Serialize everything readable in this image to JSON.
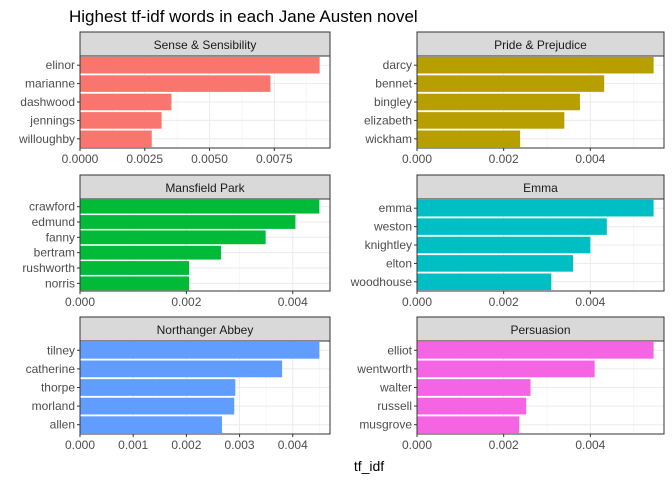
{
  "title": "Highest tf-idf words in each Jane Austen novel",
  "xlabel": "tf_idf",
  "chart_data": [
    {
      "type": "bar",
      "facet": "Sense & Sensibility",
      "color": "#F8766D",
      "categories": [
        "elinor",
        "marianne",
        "dashwood",
        "jennings",
        "willoughby"
      ],
      "values": [
        0.00925,
        0.00735,
        0.00353,
        0.00315,
        0.00277
      ],
      "xlim": [
        0,
        0.00965
      ],
      "ticks": [
        0,
        0.0025,
        0.005,
        0.0075
      ],
      "tick_labels": [
        "0.0000",
        "0.0025",
        "0.0050",
        "0.0075"
      ]
    },
    {
      "type": "bar",
      "facet": "Pride & Prejudice",
      "color": "#B79F00",
      "categories": [
        "darcy",
        "bennet",
        "bingley",
        "elizabeth",
        "wickham"
      ],
      "values": [
        0.00546,
        0.00432,
        0.00376,
        0.0034,
        0.00238
      ],
      "xlim": [
        0,
        0.0057
      ],
      "ticks": [
        0,
        0.002,
        0.004
      ],
      "tick_labels": [
        "0.000",
        "0.002",
        "0.004"
      ]
    },
    {
      "type": "bar",
      "facet": "Mansfield Park",
      "color": "#00BA38",
      "categories": [
        "crawford",
        "edmund",
        "fanny",
        "bertram",
        "rushworth",
        "norris"
      ],
      "values": [
        0.0045,
        0.00405,
        0.00349,
        0.00265,
        0.00205,
        0.00205
      ],
      "xlim": [
        0,
        0.0047
      ],
      "ticks": [
        0,
        0.002,
        0.004
      ],
      "tick_labels": [
        "0.000",
        "0.002",
        "0.004"
      ]
    },
    {
      "type": "bar",
      "facet": "Emma",
      "color": "#00BFC4",
      "categories": [
        "emma",
        "weston",
        "knightley",
        "elton",
        "woodhouse"
      ],
      "values": [
        0.00546,
        0.00438,
        0.004,
        0.0036,
        0.0031
      ],
      "xlim": [
        0,
        0.0057
      ],
      "ticks": [
        0,
        0.002,
        0.004
      ],
      "tick_labels": [
        "0.000",
        "0.002",
        "0.004"
      ]
    },
    {
      "type": "bar",
      "facet": "Northanger Abbey",
      "color": "#619CFF",
      "categories": [
        "tilney",
        "catherine",
        "thorpe",
        "morland",
        "allen"
      ],
      "values": [
        0.0045,
        0.0038,
        0.00292,
        0.0029,
        0.00267
      ],
      "xlim": [
        0,
        0.0047
      ],
      "ticks": [
        0,
        0.001,
        0.002,
        0.003,
        0.004
      ],
      "tick_labels": [
        "0.000",
        "0.001",
        "0.002",
        "0.003",
        "0.004"
      ]
    },
    {
      "type": "bar",
      "facet": "Persuasion",
      "color": "#F564E3",
      "categories": [
        "elliot",
        "wentworth",
        "walter",
        "russell",
        "musgrove"
      ],
      "values": [
        0.00546,
        0.0041,
        0.00262,
        0.00252,
        0.00236
      ],
      "xlim": [
        0,
        0.0057
      ],
      "ticks": [
        0,
        0.002,
        0.004
      ],
      "tick_labels": [
        "0.000",
        "0.002",
        "0.004"
      ]
    }
  ]
}
